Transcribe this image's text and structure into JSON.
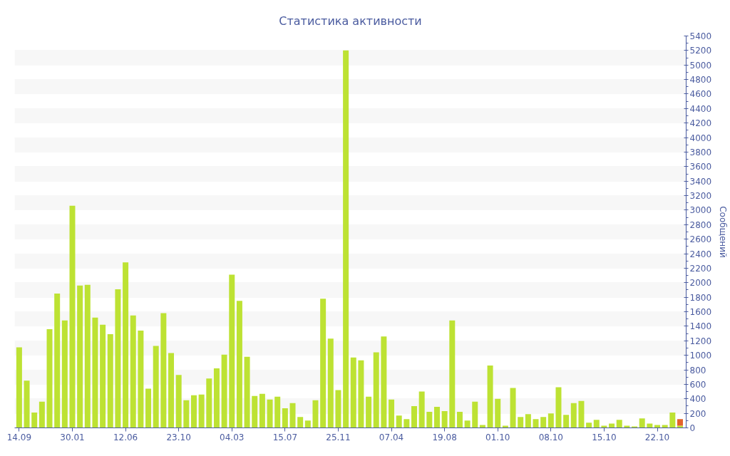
{
  "chart_data": {
    "type": "bar",
    "title": "Статистика активности",
    "ylabel": "Сообщений",
    "categories": [
      "14.09",
      null,
      null,
      null,
      null,
      null,
      null,
      "30.01",
      null,
      null,
      null,
      null,
      null,
      null,
      "12.06",
      null,
      null,
      null,
      null,
      null,
      null,
      "23.10",
      null,
      null,
      null,
      null,
      null,
      null,
      "04.03",
      null,
      null,
      null,
      null,
      null,
      null,
      "15.07",
      null,
      null,
      null,
      null,
      null,
      null,
      "25.11",
      null,
      null,
      null,
      null,
      null,
      null,
      "07.04",
      null,
      null,
      null,
      null,
      null,
      null,
      "19.08",
      null,
      null,
      null,
      null,
      null,
      null,
      "01.10",
      null,
      null,
      null,
      null,
      null,
      null,
      "08.10",
      null,
      null,
      null,
      null,
      null,
      null,
      "15.10",
      null,
      null,
      null,
      null,
      null,
      null,
      "22.10",
      null,
      null,
      null
    ],
    "stacked": true,
    "series": [
      {
        "color": "#bde233",
        "values": [
          1110,
          650,
          210,
          360,
          1360,
          1850,
          1480,
          3060,
          1960,
          1970,
          1520,
          1420,
          1290,
          1910,
          2280,
          1550,
          1340,
          540,
          1130,
          1580,
          1030,
          730,
          380,
          450,
          460,
          680,
          820,
          1010,
          2110,
          1750,
          980,
          440,
          470,
          390,
          430,
          270,
          340,
          150,
          100,
          380,
          1780,
          1230,
          520,
          5200,
          970,
          930,
          430,
          1040,
          1260,
          390,
          170,
          120,
          300,
          500,
          220,
          290,
          230,
          1480,
          220,
          100,
          360,
          40,
          860,
          400,
          30,
          550,
          150,
          190,
          120,
          150,
          200,
          560,
          180,
          340,
          370,
          70,
          110,
          30,
          60,
          110,
          30,
          20,
          130,
          60,
          40,
          40,
          210,
          30
        ]
      },
      {
        "color": "#e2622b",
        "values": [
          null,
          null,
          null,
          null,
          null,
          null,
          null,
          null,
          null,
          null,
          null,
          null,
          null,
          null,
          null,
          null,
          null,
          null,
          null,
          null,
          null,
          null,
          null,
          null,
          null,
          null,
          null,
          null,
          null,
          null,
          null,
          null,
          null,
          null,
          null,
          null,
          null,
          null,
          null,
          null,
          null,
          null,
          null,
          null,
          null,
          null,
          null,
          null,
          null,
          null,
          null,
          null,
          null,
          null,
          null,
          null,
          null,
          null,
          null,
          null,
          null,
          null,
          null,
          null,
          null,
          null,
          null,
          null,
          null,
          null,
          null,
          null,
          null,
          null,
          null,
          null,
          null,
          null,
          null,
          null,
          null,
          null,
          null,
          null,
          null,
          null,
          null,
          90
        ]
      }
    ],
    "ylim": [
      0,
      5400
    ],
    "yticks": [
      0,
      200,
      400,
      600,
      800,
      1000,
      1200,
      1400,
      1600,
      1800,
      2000,
      2200,
      2400,
      2600,
      2800,
      3000,
      3200,
      3400,
      3600,
      3800,
      4000,
      4200,
      4400,
      4600,
      4800,
      5000,
      5200,
      5400
    ],
    "grid": "y"
  }
}
